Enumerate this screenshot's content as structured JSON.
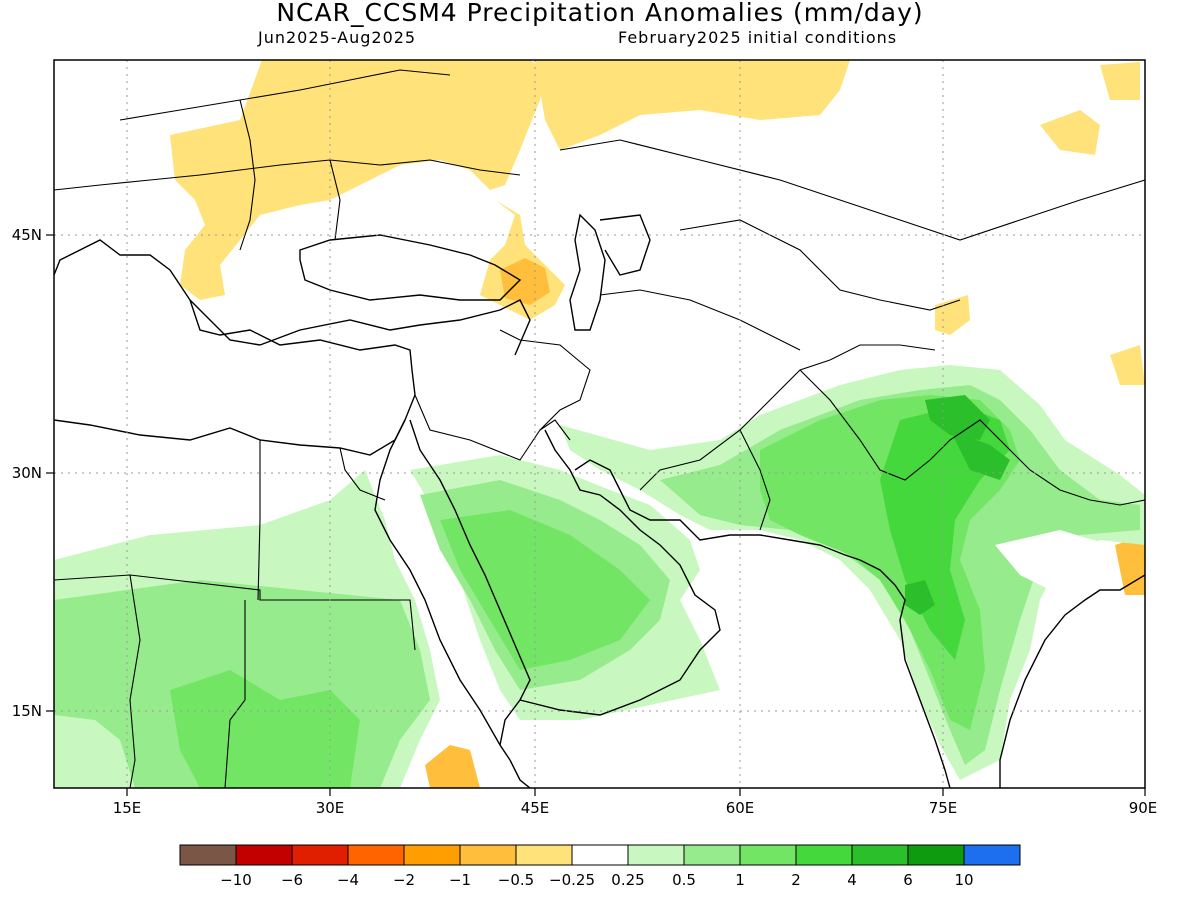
{
  "header": {
    "title": "NCAR_CCSM4 Precipitation Anomalies (mm/day)",
    "period": "Jun2025-Aug2025",
    "init": "February2025 initial conditions"
  },
  "map": {
    "lon_range": [
      10,
      90
    ],
    "lat_range": [
      10,
      55
    ],
    "lon_ticks": [
      "15E",
      "30E",
      "45E",
      "60E",
      "75E",
      "90E"
    ],
    "lat_ticks": [
      "45N",
      "30N",
      "15N"
    ]
  },
  "legend": {
    "labels": [
      "-10",
      "-6",
      "-4",
      "-2",
      "-1",
      "-0.5",
      "-0.25",
      "0.25",
      "0.5",
      "1",
      "2",
      "4",
      "6",
      "10"
    ],
    "colors": [
      "#7a5646",
      "#c20000",
      "#e01e00",
      "#ff6400",
      "#ff9e00",
      "#ffbe3c",
      "#ffe27a",
      "#ffffff",
      "#c8f8c0",
      "#96eb8c",
      "#72e664",
      "#44d83c",
      "#2bbf2b",
      "#0f9b0f",
      "#1e6ef0"
    ]
  }
}
